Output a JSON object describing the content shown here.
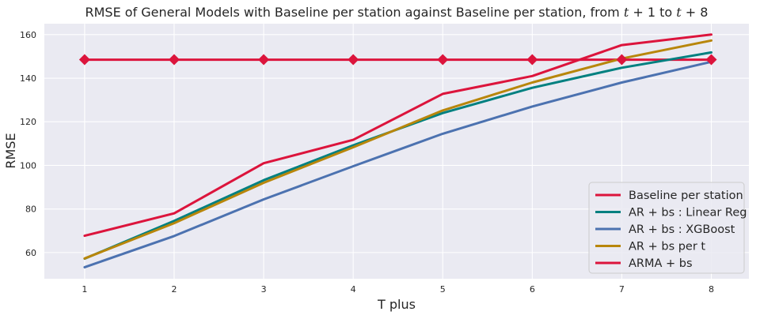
{
  "chart_data": {
    "type": "line",
    "title": "RMSE of General Models with Baseline per station against Baseline per station, from t + 1 to t + 8",
    "title_parts": {
      "prefix": "RMSE of General Models with Baseline per station against Baseline per station, from ",
      "t1_var": "t",
      "t1_op": " + 1",
      "mid": " to ",
      "t8_var": "t",
      "t8_op": " + 8"
    },
    "xlabel": "T plus",
    "ylabel": "RMSE",
    "x": [
      1,
      2,
      3,
      4,
      5,
      6,
      7,
      8
    ],
    "x_tick_labels": [
      "1",
      "2",
      "3",
      "4",
      "5",
      "6",
      "7",
      "8"
    ],
    "xlim": [
      0.55,
      8.42
    ],
    "ylim": [
      48,
      165
    ],
    "y_ticks": [
      60,
      80,
      100,
      120,
      140,
      160
    ],
    "y_tick_labels": [
      "60",
      "80",
      "100",
      "120",
      "140",
      "160"
    ],
    "grid": true,
    "legend_position": "bottom-right",
    "background_color": "#EAEAF2",
    "series": [
      {
        "name": "Baseline per station",
        "color": "#DC143C",
        "marker": "diamond",
        "values": [
          148.5,
          148.5,
          148.5,
          148.5,
          148.5,
          148.5,
          148.5,
          148.5
        ]
      },
      {
        "name": "AR + bs : Linear Reg",
        "color": "#008080",
        "marker": null,
        "values": [
          57.2,
          74.5,
          93.2,
          109.2,
          124.0,
          135.6,
          144.8,
          151.8
        ]
      },
      {
        "name": "AR + bs : XGBoost",
        "color": "#4C72B0",
        "marker": null,
        "values": [
          53.3,
          67.6,
          84.4,
          99.6,
          114.5,
          127.0,
          138.0,
          147.5
        ]
      },
      {
        "name": "AR + bs per t",
        "color": "#B8860B",
        "marker": null,
        "values": [
          57.3,
          73.5,
          92.0,
          108.3,
          125.2,
          138.0,
          149.0,
          157.3
        ]
      },
      {
        "name": "ARMA + bs",
        "color": "#DC143C",
        "marker": null,
        "values": [
          67.7,
          78.0,
          101.0,
          111.7,
          132.8,
          141.0,
          155.2,
          160.0
        ]
      }
    ]
  }
}
